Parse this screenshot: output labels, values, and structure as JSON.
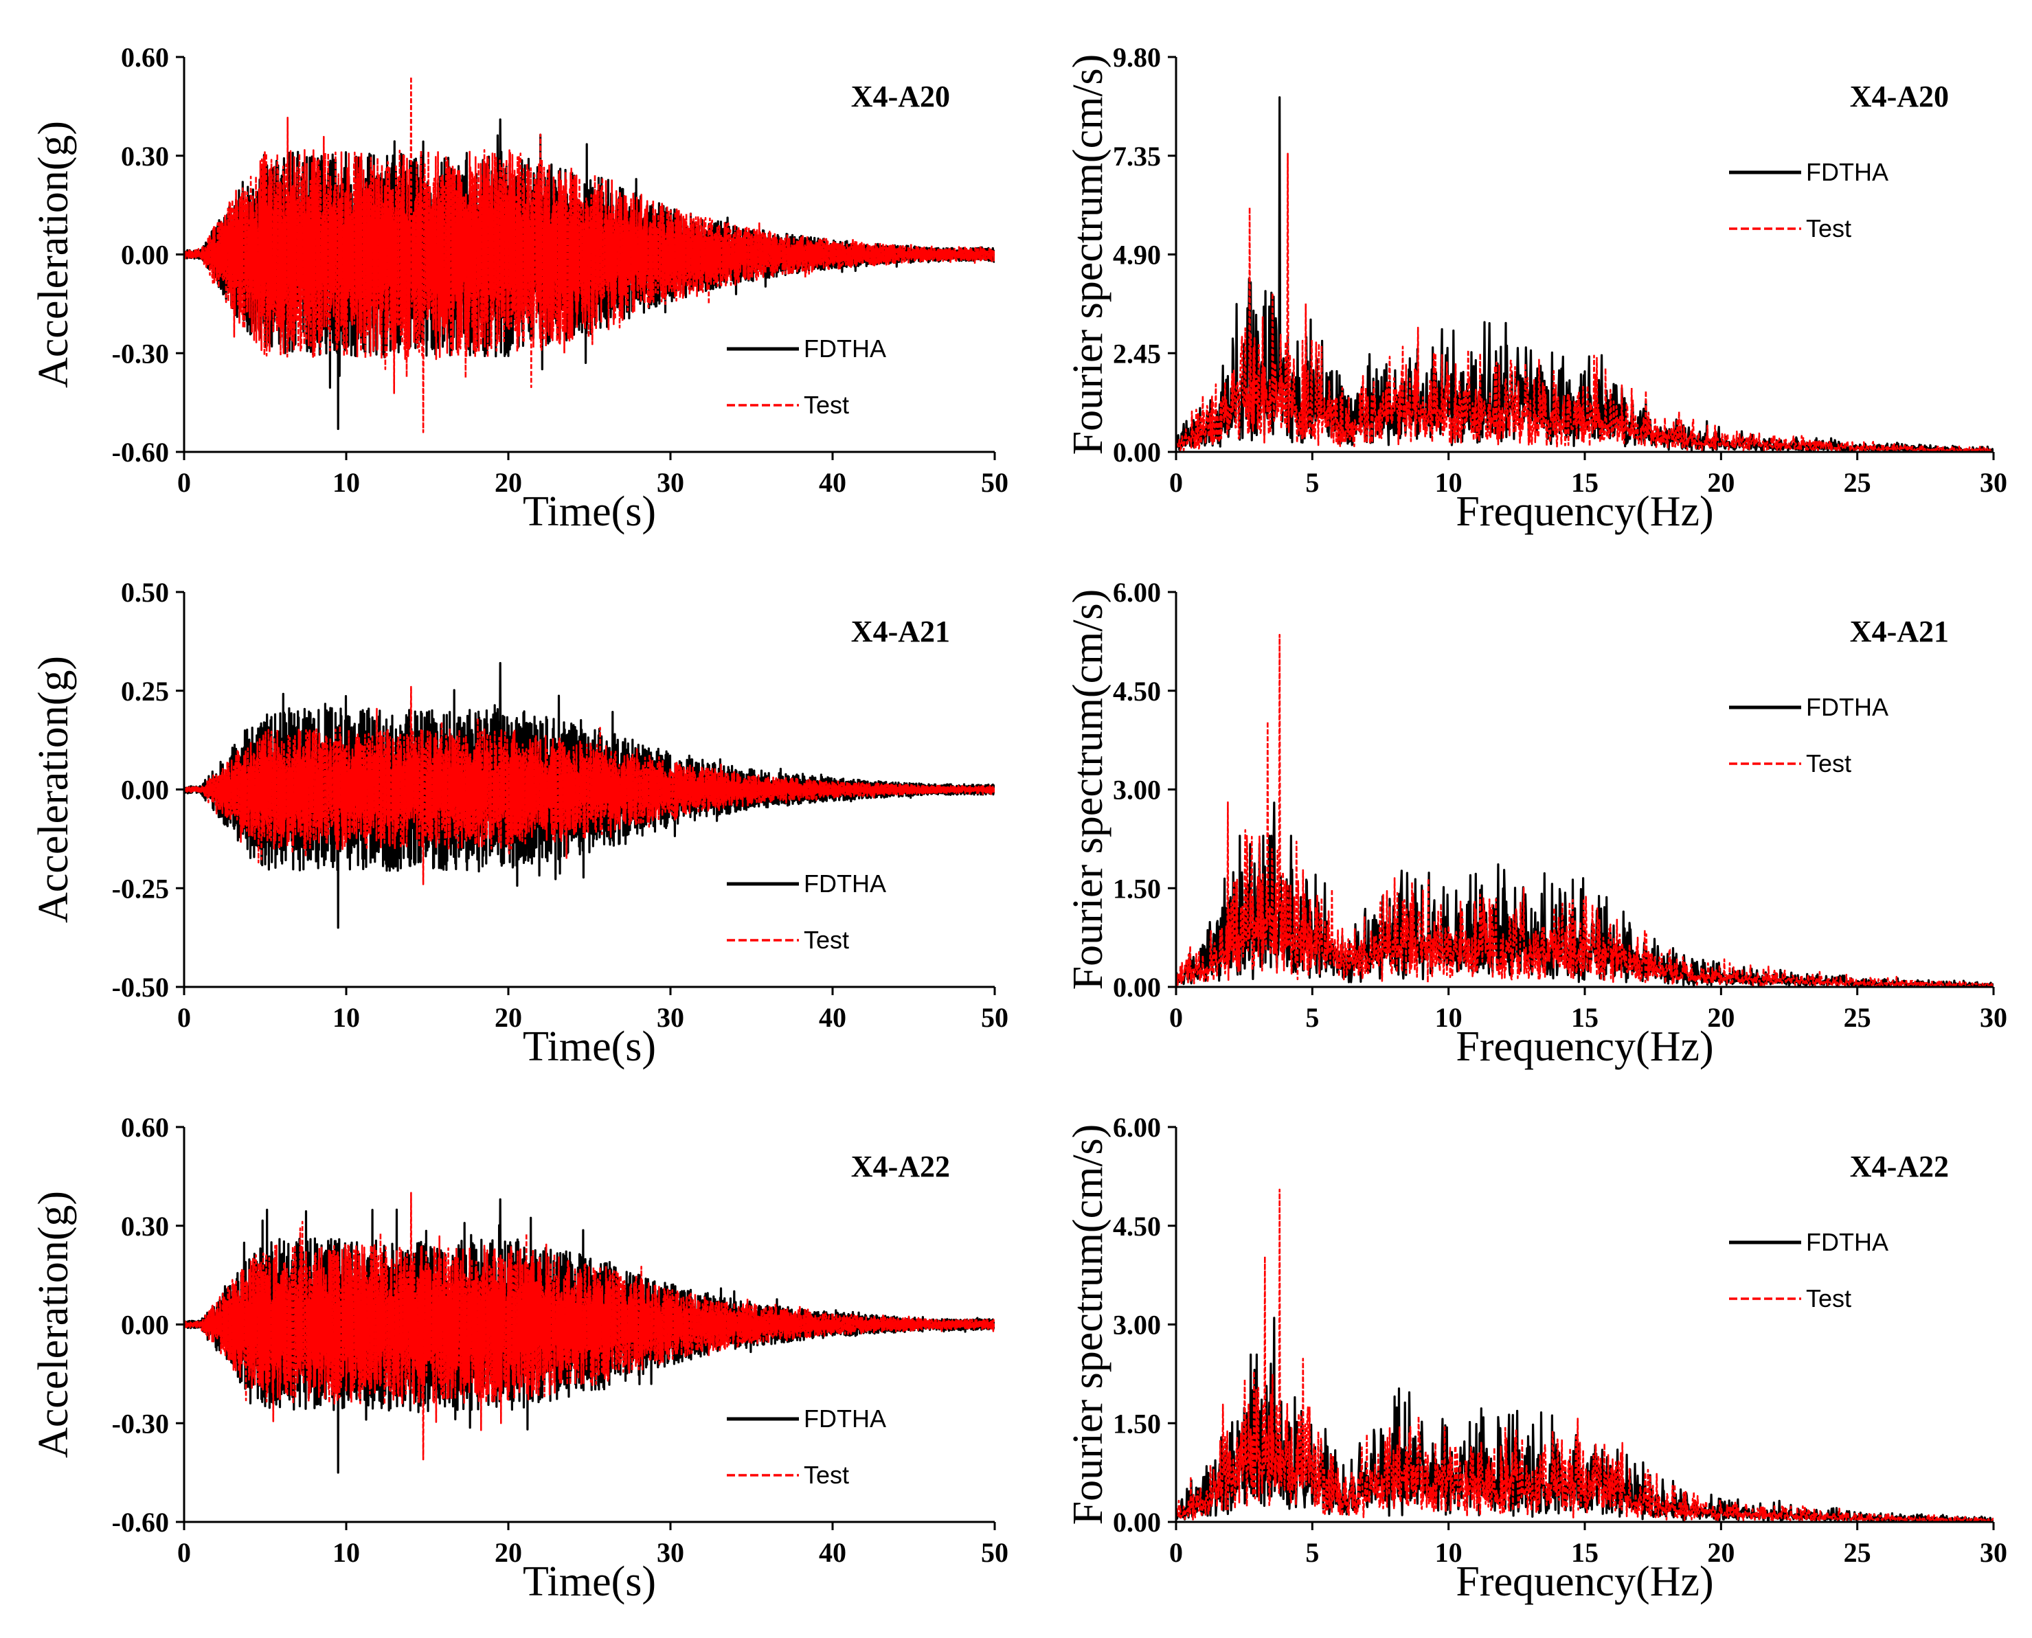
{
  "colors": {
    "fdtha": "#000000",
    "test": "#ff0000"
  },
  "chart_data": [
    {
      "type": "line",
      "signal": "time",
      "title": "X4-A20",
      "xlabel": "Time(s)",
      "ylabel": "Acceleration(g)",
      "xlim": [
        0,
        50
      ],
      "ylim": [
        -0.6,
        0.6
      ],
      "xticks": [
        "0",
        "10",
        "20",
        "30",
        "40",
        "50"
      ],
      "yticks": [
        "-0.60",
        "-0.30",
        "0.00",
        "0.30",
        "0.60"
      ],
      "grid": false,
      "legend": "bottom-right",
      "series": [
        {
          "name": "FDTHA",
          "style": "solid",
          "peak": 0.41,
          "min": -0.53
        },
        {
          "name": "Test",
          "style": "dashed",
          "peak": 0.54,
          "min": -0.54
        }
      ]
    },
    {
      "type": "line",
      "signal": "spectrum",
      "title": "X4-A20",
      "xlabel": "Frequency(Hz)",
      "ylabel": "Fourier spectrum(cm/s)",
      "xlim": [
        0,
        30
      ],
      "ylim": [
        0,
        9.8
      ],
      "xticks": [
        "0",
        "5",
        "10",
        "15",
        "20",
        "25",
        "30"
      ],
      "yticks": [
        "0.00",
        "2.45",
        "4.90",
        "7.35",
        "9.80"
      ],
      "grid": false,
      "legend": "top-right",
      "series": [
        {
          "name": "FDTHA",
          "style": "solid",
          "peak": 8.8,
          "peak_freq": 3.8
        },
        {
          "name": "Test",
          "style": "dashed",
          "peak": 7.4,
          "peak_freq": 4.1
        }
      ]
    },
    {
      "type": "line",
      "signal": "time",
      "title": "X4-A21",
      "xlabel": "Time(s)",
      "ylabel": "Acceleration(g)",
      "xlim": [
        0,
        50
      ],
      "ylim": [
        -0.5,
        0.5
      ],
      "xticks": [
        "0",
        "10",
        "20",
        "30",
        "40",
        "50"
      ],
      "yticks": [
        "-0.50",
        "-0.25",
        "0.00",
        "0.25",
        "0.50"
      ],
      "grid": false,
      "legend": "bottom-right",
      "series": [
        {
          "name": "FDTHA",
          "style": "solid",
          "peak": 0.32,
          "min": -0.35
        },
        {
          "name": "Test",
          "style": "dashed",
          "peak": 0.26,
          "min": -0.24
        }
      ]
    },
    {
      "type": "line",
      "signal": "spectrum",
      "title": "X4-A21",
      "xlabel": "Frequency(Hz)",
      "ylabel": "Fourier spectrum(cm/s)",
      "xlim": [
        0,
        30
      ],
      "ylim": [
        0,
        6.0
      ],
      "xticks": [
        "0",
        "5",
        "10",
        "15",
        "20",
        "25",
        "30"
      ],
      "yticks": [
        "0.00",
        "1.50",
        "3.00",
        "4.50",
        "6.00"
      ],
      "grid": false,
      "legend": "top-right",
      "series": [
        {
          "name": "FDTHA",
          "style": "solid",
          "peak": 2.8,
          "peak_freq": 3.6
        },
        {
          "name": "Test",
          "style": "dashed",
          "peak": 5.35,
          "peak_freq": 3.8
        }
      ]
    },
    {
      "type": "line",
      "signal": "time",
      "title": "X4-A22",
      "xlabel": "Time(s)",
      "ylabel": "Acceleration(g)",
      "xlim": [
        0,
        50
      ],
      "ylim": [
        -0.6,
        0.6
      ],
      "xticks": [
        "0",
        "10",
        "20",
        "30",
        "40",
        "50"
      ],
      "yticks": [
        "-0.60",
        "-0.30",
        "0.00",
        "0.30",
        "0.60"
      ],
      "grid": false,
      "legend": "bottom-right",
      "series": [
        {
          "name": "FDTHA",
          "style": "solid",
          "peak": 0.38,
          "min": -0.45
        },
        {
          "name": "Test",
          "style": "dashed",
          "peak": 0.4,
          "min": -0.41
        }
      ]
    },
    {
      "type": "line",
      "signal": "spectrum",
      "title": "X4-A22",
      "xlabel": "Frequency(Hz)",
      "ylabel": "Fourier spectrum(cm/s)",
      "xlim": [
        0,
        30
      ],
      "ylim": [
        0,
        6.0
      ],
      "xticks": [
        "0",
        "5",
        "10",
        "15",
        "20",
        "25",
        "30"
      ],
      "yticks": [
        "0.00",
        "1.50",
        "3.00",
        "4.50",
        "6.00"
      ],
      "grid": false,
      "legend": "top-right",
      "series": [
        {
          "name": "FDTHA",
          "style": "solid",
          "peak": 3.1,
          "peak_freq": 3.6
        },
        {
          "name": "Test",
          "style": "dashed",
          "peak": 5.05,
          "peak_freq": 3.8
        }
      ]
    }
  ]
}
